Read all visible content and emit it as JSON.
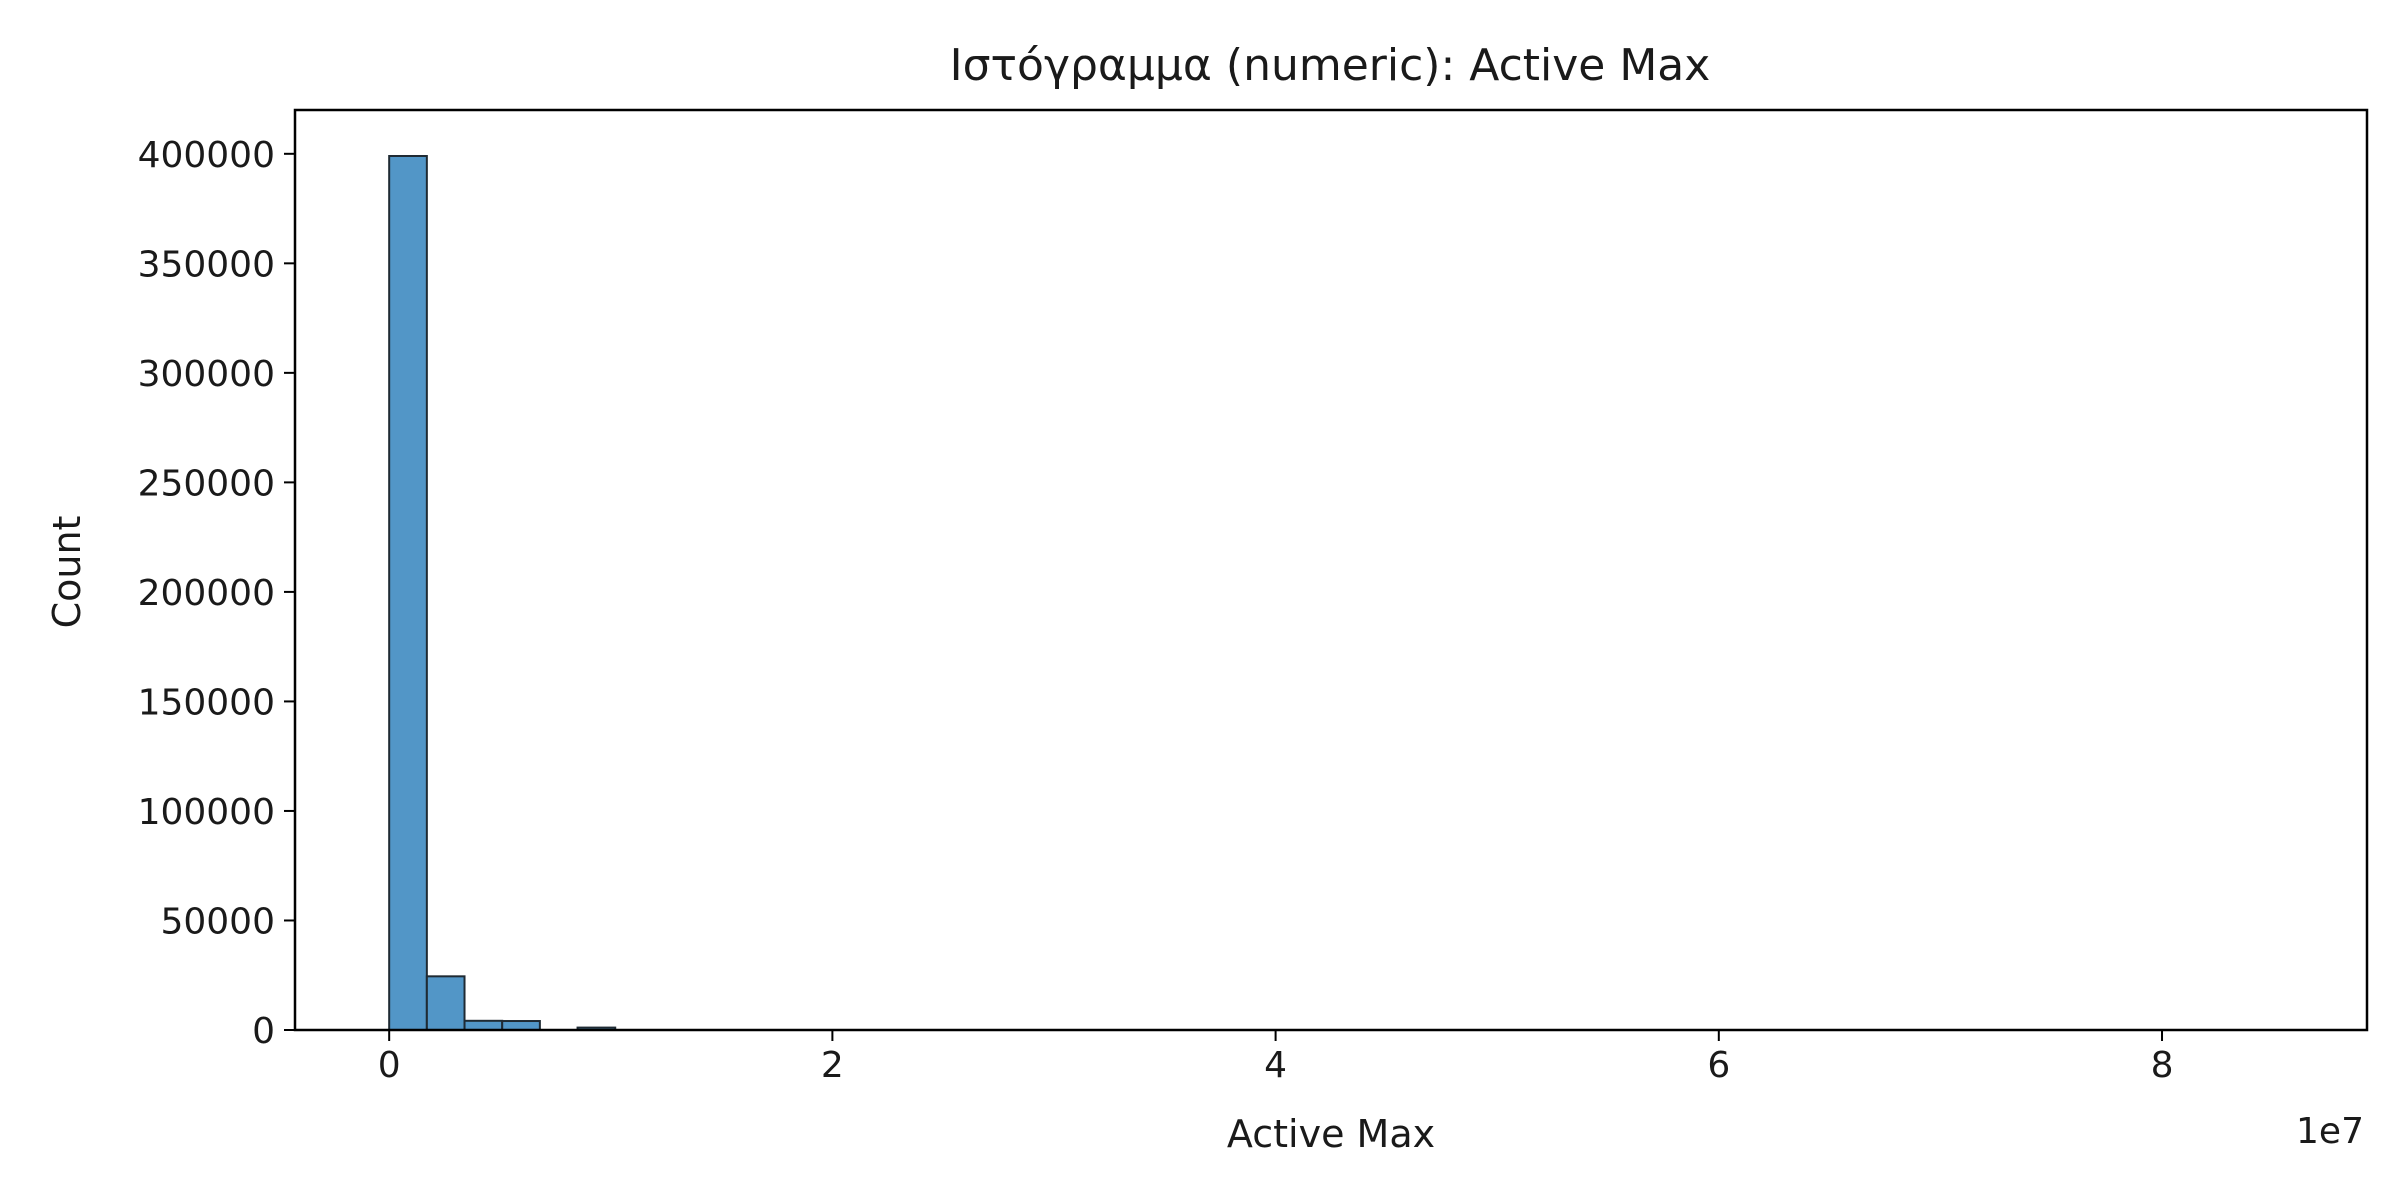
{
  "chart_data": {
    "type": "bar",
    "title": "Ιστόγραμμα (numeric): Active Max",
    "xlabel": "Active Max",
    "ylabel": "Count",
    "x_offset_label": "1e7",
    "xlim": [
      -4250000,
      89250000
    ],
    "ylim": [
      0,
      420000
    ],
    "x_ticks": [
      0,
      20000000,
      40000000,
      60000000,
      80000000
    ],
    "x_tick_labels": [
      "0",
      "2",
      "4",
      "6",
      "8"
    ],
    "y_ticks": [
      0,
      50000,
      100000,
      150000,
      200000,
      250000,
      300000,
      350000,
      400000
    ],
    "y_tick_labels": [
      "0",
      "50000",
      "100000",
      "150000",
      "200000",
      "250000",
      "300000",
      "350000",
      "400000"
    ],
    "bin_start": 0,
    "bin_width": 1700000,
    "values": [
      399000,
      24500,
      4200,
      4100,
      0,
      1100,
      0,
      0,
      0,
      0,
      0,
      0,
      0,
      0,
      0,
      0,
      0,
      0,
      0,
      0,
      0,
      0,
      0,
      0,
      0,
      0,
      0,
      0,
      0,
      0,
      0,
      0,
      0,
      0,
      0,
      0,
      0,
      0,
      0,
      0,
      0,
      0,
      0,
      0,
      0,
      0,
      0,
      0,
      0,
      0
    ],
    "bar_color": "#5296c7",
    "edge_color": "#1f2a33",
    "grid": false,
    "legend": "none"
  }
}
